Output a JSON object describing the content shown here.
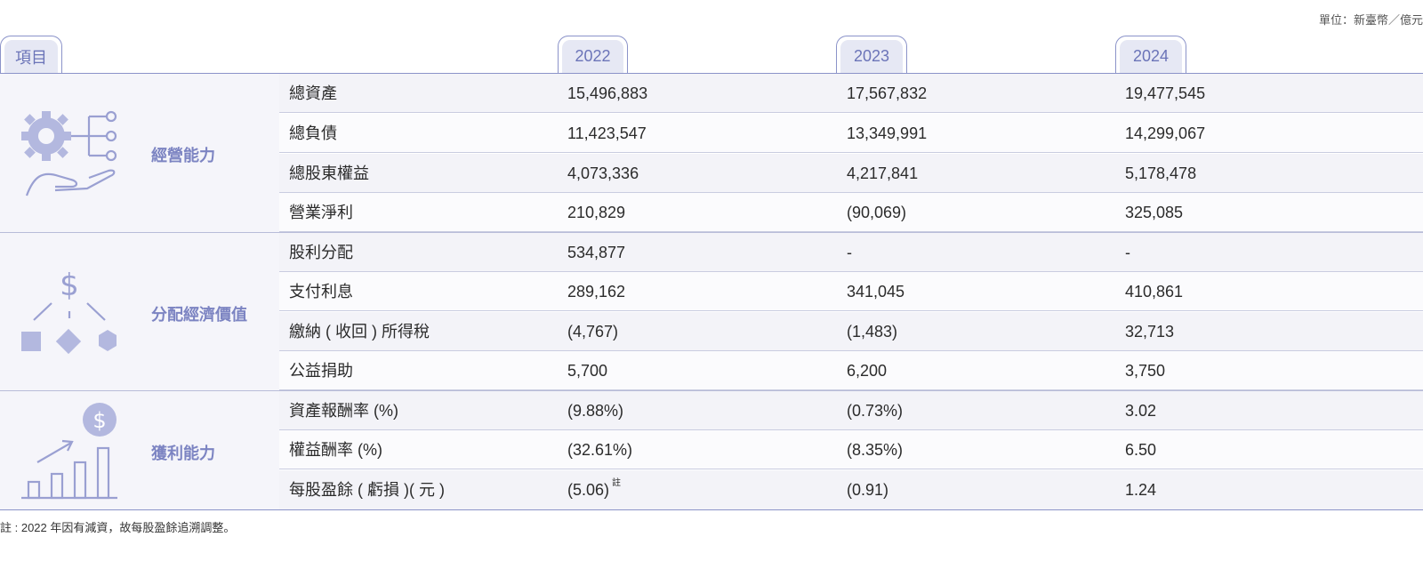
{
  "unit": "單位：新臺幣／億元",
  "header": {
    "item_label": "項目",
    "years": [
      "2022",
      "2023",
      "2024"
    ]
  },
  "groups": [
    {
      "label": "經營能力",
      "icon": "gear-hand-network-icon",
      "rows": [
        {
          "name": "總資產",
          "v2022": "15,496,883",
          "v2023": "17,567,832",
          "v2024": "19,477,545"
        },
        {
          "name": "總負債",
          "v2022": "11,423,547",
          "v2023": "13,349,991",
          "v2024": "14,299,067"
        },
        {
          "name": "總股東權益",
          "v2022": "4,073,336",
          "v2023": "4,217,841",
          "v2024": "5,178,478"
        },
        {
          "name": "營業淨利",
          "v2022": "210,829",
          "v2023": "(90,069)",
          "v2024": "325,085"
        }
      ]
    },
    {
      "label": "分配經濟價值",
      "icon": "dollar-distribution-icon",
      "rows": [
        {
          "name": "股利分配",
          "v2022": "534,877",
          "v2023": "-",
          "v2024": "-"
        },
        {
          "name": "支付利息",
          "v2022": "289,162",
          "v2023": "341,045",
          "v2024": "410,861"
        },
        {
          "name": "繳納 ( 收回 ) 所得稅",
          "v2022": "(4,767)",
          "v2023": "(1,483)",
          "v2024": "32,713"
        },
        {
          "name": "公益捐助",
          "v2022": "5,700",
          "v2023": "6,200",
          "v2024": "3,750"
        }
      ]
    },
    {
      "label": "獲利能力",
      "icon": "growth-chart-dollar-icon",
      "rows": [
        {
          "name": "資產報酬率 (%)",
          "v2022": "(9.88%)",
          "v2023": "(0.73%)",
          "v2024": "3.02"
        },
        {
          "name": "權益酬率 (%)",
          "v2022": "(32.61%)",
          "v2023": "(8.35%)",
          "v2024": "6.50"
        },
        {
          "name": "每股盈餘 ( 虧損 )( 元 )",
          "v2022": "(5.06)",
          "v2022_sup": "註",
          "v2023": "(0.91)",
          "v2024": "1.24"
        }
      ]
    }
  ],
  "note": "註 : 2022 年因有減資，故每股盈餘追溯調整。",
  "colors": {
    "accent": "#7c84c2",
    "icon": "#b3b8df",
    "line": "#8b93c9",
    "row_shade": "#f3f3f8"
  }
}
